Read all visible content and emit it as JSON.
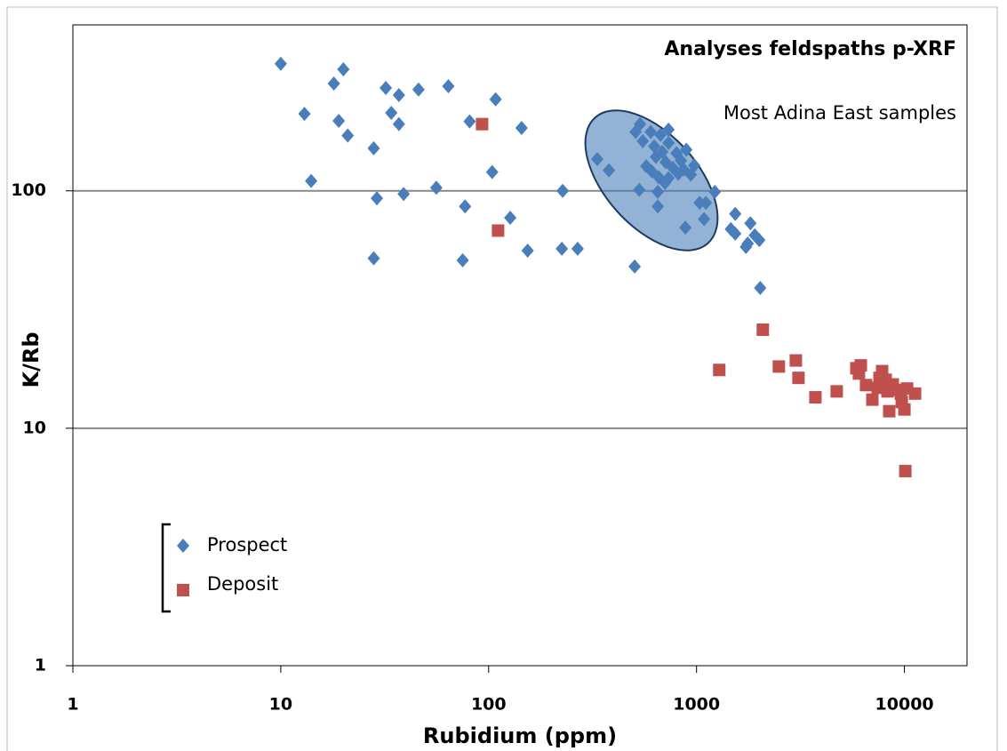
{
  "chart_data": {
    "type": "scatter",
    "title": "Analyses feldspaths p-XRF",
    "annotation": "Most Adina East samples",
    "x_label": "Rubidium (ppm)",
    "y_label": "K/Rb",
    "log_x": true,
    "log_y": true,
    "xlim": [
      1,
      20000
    ],
    "ylim": [
      1,
      500
    ],
    "xticks": [
      1,
      10,
      100,
      1000,
      10000
    ],
    "yticks": [
      1,
      10,
      100
    ],
    "grid": true,
    "legend_position": "lower left",
    "series": [
      {
        "name": "Prospect",
        "color": "#4a7ebb",
        "marker": "diamond",
        "x": [
          10,
          13,
          18,
          20,
          19,
          21,
          14,
          28,
          29,
          28,
          32,
          34,
          37,
          37,
          39,
          46,
          56,
          64,
          77,
          75,
          81,
          108,
          104,
          127,
          144,
          154,
          227,
          225,
          268,
          333,
          379,
          504,
          535,
          509,
          551,
          602,
          626,
          671,
          733,
          573,
          608,
          638,
          684,
          733,
          711,
          658,
          705,
          733,
          651,
          530,
          801,
          841,
          867,
          938,
          975,
          893,
          770,
          817,
          651,
          884,
          1035,
          1109,
          1087,
          1224,
          1535,
          1462,
          1535,
          1816,
          1907,
          2004,
          1763,
          1728,
          2024
        ],
        "values": [
          343,
          211,
          283,
          325,
          197,
          171,
          110,
          151,
          93,
          52,
          271,
          213,
          253,
          191,
          97,
          267,
          103,
          276,
          86,
          51,
          196,
          243,
          120,
          77,
          184,
          56,
          100,
          57,
          57,
          136,
          122,
          48,
          191,
          177,
          162,
          177,
          154,
          172,
          181,
          127,
          121,
          139,
          146,
          159,
          132,
          114,
          108,
          113,
          99,
          101,
          144,
          134,
          123,
          117,
          128,
          149,
          125,
          118,
          86,
          70,
          89,
          89,
          76,
          99,
          80,
          69,
          66,
          73,
          65,
          62,
          60,
          58,
          39
        ]
      },
      {
        "name": "Deposit",
        "color": "#c0504d",
        "marker": "square",
        "x": [
          93,
          111,
          1286,
          2084,
          2489,
          3004,
          3093,
          3730,
          4724,
          5870,
          6170,
          6040,
          6540,
          7010,
          7440,
          7590,
          7810,
          8130,
          8290,
          8450,
          8790,
          9240,
          9610,
          9710,
          10000,
          10300,
          11250,
          10100
        ],
        "values": [
          191,
          68,
          17.6,
          26,
          18.2,
          19.3,
          16.3,
          13.5,
          14.3,
          17.9,
          18.4,
          17,
          15.2,
          13.2,
          14.8,
          16.3,
          17.4,
          16,
          14.3,
          11.8,
          15.3,
          14.5,
          14,
          12.9,
          12,
          14.7,
          14,
          6.6
        ]
      }
    ]
  }
}
